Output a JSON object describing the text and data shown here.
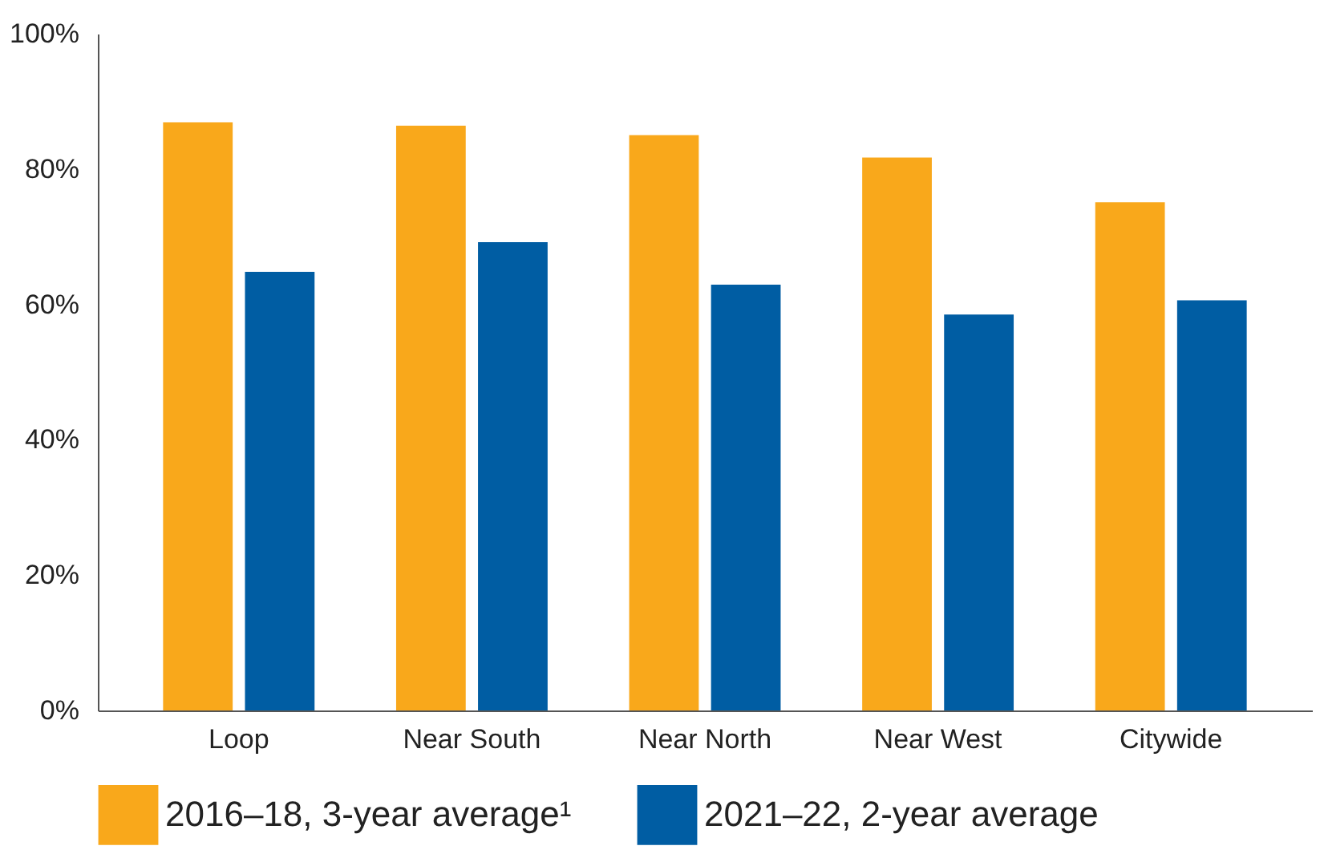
{
  "chart_data": {
    "type": "bar",
    "categories": [
      "Loop",
      "Near South",
      "Near North",
      "Near West",
      "Citywide"
    ],
    "series": [
      {
        "name": "2016–18, 3-year average¹",
        "color": "#f9a81b",
        "values": [
          86.9,
          86.4,
          85.0,
          81.7,
          75.1
        ]
      },
      {
        "name": "2021–22, 2-year average",
        "color": "#005da3",
        "values": [
          64.8,
          69.2,
          62.9,
          58.5,
          60.6
        ]
      }
    ],
    "ylim": [
      0,
      100
    ],
    "yticks": [
      {
        "value": 0,
        "label": "0%"
      },
      {
        "value": 20,
        "label": "20%"
      },
      {
        "value": 40,
        "label": "40%"
      },
      {
        "value": 60,
        "label": "60%"
      },
      {
        "value": 80,
        "label": "80%"
      },
      {
        "value": 100,
        "label": "100%"
      }
    ],
    "grid": false,
    "legend": "bottom"
  }
}
